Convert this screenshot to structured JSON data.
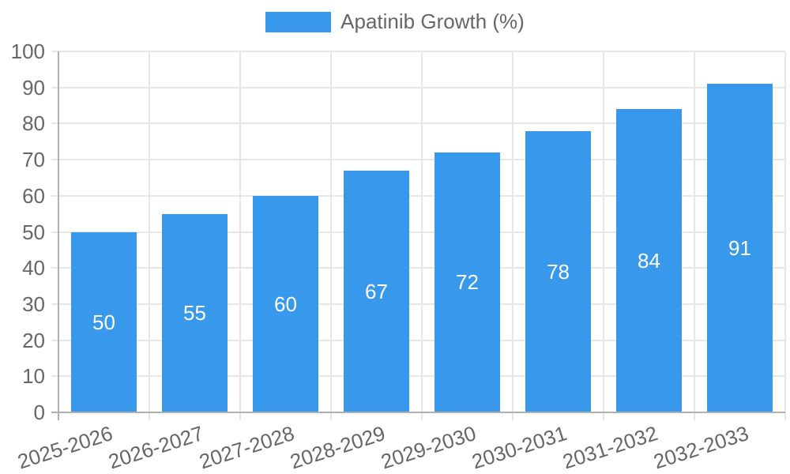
{
  "chart_data": {
    "type": "bar",
    "title": "",
    "categories": [
      "2025-2026",
      "2026-2027",
      "2027-2028",
      "2028-2029",
      "2029-2030",
      "2030-2031",
      "2031-2032",
      "2032-2033"
    ],
    "series": [
      {
        "name": "Apatinib Growth (%)",
        "values": [
          50,
          55,
          60,
          67,
          72,
          78,
          84,
          91
        ]
      }
    ],
    "xlabel": "",
    "ylabel": "",
    "ylim": [
      0,
      100
    ],
    "yticks": [
      0,
      10,
      20,
      30,
      40,
      50,
      60,
      70,
      80,
      90,
      100
    ],
    "grid": true,
    "legend_position": "top",
    "value_labels": "inside-center",
    "x_tick_rotation_deg": -17.7
  },
  "legend": {
    "items": [
      {
        "label": "Apatinib Growth (%)",
        "color": "#3899EC"
      }
    ]
  },
  "colors": {
    "bar": "#3899EC",
    "axis_line": "#B0B0B0",
    "grid_line": "#E6E6E6",
    "tick_text": "#666666",
    "value_text": "#FFFFFF",
    "background": "#FFFFFF"
  }
}
